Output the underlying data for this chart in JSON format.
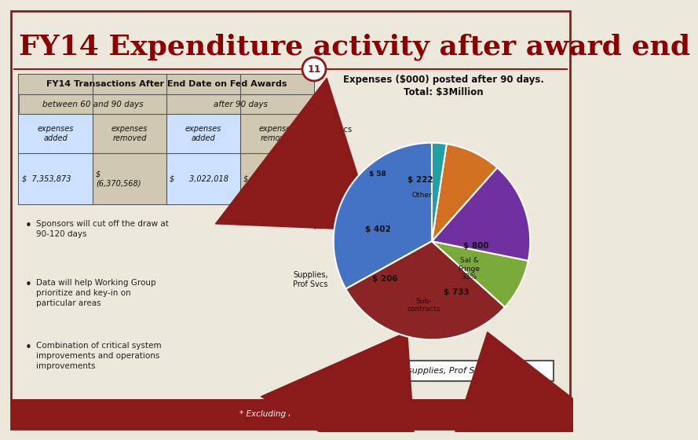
{
  "title": "FY14 Expenditure activity after award end",
  "slide_number": "11",
  "background_color": "#ede8dc",
  "border_color": "#8b1a1a",
  "title_color": "#8b0000",
  "footer_color": "#8b1a1a",
  "table_title": "FY14 Transactions After End Date on Fed Awards",
  "col_headers": [
    "between 60 and 90 days",
    "after 90 days"
  ],
  "pie_values": [
    800,
    733,
    206,
    402,
    222,
    58
  ],
  "pie_colors": [
    "#4472c4",
    "#8b2525",
    "#7aaa3a",
    "#7030a0",
    "#d07020",
    "#20a0a0"
  ],
  "pie_note": "Subs, supplies, Prof Svcs = 39%",
  "pie_title_line1": "Expenses ($000) posted after 90 days.",
  "pie_title_line2": "Total: $3Million",
  "footer_text": "* Excluding PhA = $2.4M",
  "bullet_points": [
    "Sponsors will cut off the draw at\n90-120 days",
    "Data will help Working Group\nprioritize and key-in on\nparticular areas",
    "Combination of critical system\nimprovements and operations\nimprovements"
  ]
}
